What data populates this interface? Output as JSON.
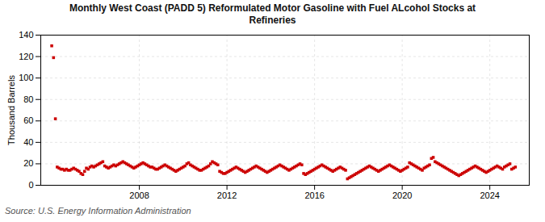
{
  "chart_data": {
    "type": "scatter",
    "title": "Monthly West Coast (PADD 5) Reformulated Motor Gasoline with Fuel ALcohol Stocks at\nRefineries",
    "ylabel": "Thousand Barrels",
    "source": "Source: U.S. Energy Information Administration",
    "color": "#cc0000",
    "marker": "square",
    "grid": true,
    "xlim": [
      2003.5,
      2025.8
    ],
    "xticks": [
      2008,
      2012,
      2016,
      2020,
      2024
    ],
    "ylim": [
      0,
      140
    ],
    "yticks": [
      0,
      20,
      40,
      60,
      80,
      100,
      120,
      140
    ],
    "x": [
      2004.0,
      2004.083,
      2004.167,
      2004.25,
      2004.333,
      2004.417,
      2004.5,
      2004.583,
      2004.667,
      2004.75,
      2004.833,
      2004.917,
      2005.0,
      2005.083,
      2005.167,
      2005.25,
      2005.333,
      2005.417,
      2005.5,
      2005.583,
      2005.667,
      2005.75,
      2005.833,
      2005.917,
      2006.0,
      2006.083,
      2006.167,
      2006.25,
      2006.333,
      2006.417,
      2006.5,
      2006.583,
      2006.667,
      2006.75,
      2006.833,
      2006.917,
      2007.0,
      2007.083,
      2007.167,
      2007.25,
      2007.333,
      2007.417,
      2007.5,
      2007.583,
      2007.667,
      2007.75,
      2007.833,
      2007.917,
      2008.0,
      2008.083,
      2008.167,
      2008.25,
      2008.333,
      2008.417,
      2008.5,
      2008.583,
      2008.667,
      2008.75,
      2008.833,
      2008.917,
      2009.0,
      2009.083,
      2009.167,
      2009.25,
      2009.333,
      2009.417,
      2009.5,
      2009.583,
      2009.667,
      2009.75,
      2009.833,
      2009.917,
      2010.0,
      2010.083,
      2010.167,
      2010.25,
      2010.333,
      2010.417,
      2010.5,
      2010.583,
      2010.667,
      2010.75,
      2010.833,
      2010.917,
      2011.0,
      2011.083,
      2011.167,
      2011.25,
      2011.333,
      2011.417,
      2011.5,
      2011.583,
      2011.667,
      2011.75,
      2011.833,
      2011.917,
      2012.0,
      2012.083,
      2012.167,
      2012.25,
      2012.333,
      2012.417,
      2012.5,
      2012.583,
      2012.667,
      2012.75,
      2012.833,
      2012.917,
      2013.0,
      2013.083,
      2013.167,
      2013.25,
      2013.333,
      2013.417,
      2013.5,
      2013.583,
      2013.667,
      2013.75,
      2013.833,
      2013.917,
      2014.0,
      2014.083,
      2014.167,
      2014.25,
      2014.333,
      2014.417,
      2014.5,
      2014.583,
      2014.667,
      2014.75,
      2014.833,
      2014.917,
      2015.0,
      2015.083,
      2015.167,
      2015.25,
      2015.333,
      2015.417,
      2015.5,
      2015.583,
      2015.667,
      2015.75,
      2015.833,
      2015.917,
      2016.0,
      2016.083,
      2016.167,
      2016.25,
      2016.333,
      2016.417,
      2016.5,
      2016.583,
      2016.667,
      2016.75,
      2016.833,
      2016.917,
      2017.0,
      2017.083,
      2017.167,
      2017.25,
      2017.333,
      2017.417,
      2017.5,
      2017.583,
      2017.667,
      2017.75,
      2017.833,
      2017.917,
      2018.0,
      2018.083,
      2018.167,
      2018.25,
      2018.333,
      2018.417,
      2018.5,
      2018.583,
      2018.667,
      2018.75,
      2018.833,
      2018.917,
      2019.0,
      2019.083,
      2019.167,
      2019.25,
      2019.333,
      2019.417,
      2019.5,
      2019.583,
      2019.667,
      2019.75,
      2019.833,
      2019.917,
      2020.0,
      2020.083,
      2020.167,
      2020.25,
      2020.333,
      2020.417,
      2020.5,
      2020.583,
      2020.667,
      2020.75,
      2020.833,
      2020.917,
      2021.0,
      2021.083,
      2021.167,
      2021.25,
      2021.333,
      2021.417,
      2021.5,
      2021.583,
      2021.667,
      2021.75,
      2021.833,
      2021.917,
      2022.0,
      2022.083,
      2022.167,
      2022.25,
      2022.333,
      2022.417,
      2022.5,
      2022.583,
      2022.667,
      2022.75,
      2022.833,
      2022.917,
      2023.0,
      2023.083,
      2023.167,
      2023.25,
      2023.333,
      2023.417,
      2023.5,
      2023.583,
      2023.667,
      2023.75,
      2023.833,
      2023.917,
      2024.0,
      2024.083,
      2024.167,
      2024.25,
      2024.333,
      2024.417,
      2024.5,
      2024.583,
      2024.667,
      2024.75,
      2024.833,
      2024.917,
      2025.0,
      2025.083,
      2025.167
    ],
    "values": [
      130,
      119,
      62,
      17,
      16,
      15,
      15,
      14,
      15,
      14,
      14,
      15,
      16,
      15,
      14,
      13,
      11,
      10,
      13,
      16,
      15,
      17,
      18,
      17,
      18,
      19,
      20,
      21,
      22,
      18,
      17,
      16,
      17,
      18,
      19,
      18,
      19,
      20,
      21,
      22,
      21,
      20,
      19,
      18,
      17,
      16,
      17,
      18,
      19,
      20,
      21,
      20,
      19,
      18,
      17,
      17,
      16,
      15,
      15,
      16,
      17,
      18,
      19,
      18,
      17,
      16,
      15,
      14,
      13,
      14,
      15,
      16,
      17,
      18,
      20,
      21,
      19,
      18,
      17,
      16,
      15,
      14,
      14,
      15,
      16,
      17,
      18,
      20,
      22,
      21,
      20,
      19,
      13,
      12,
      11,
      11,
      12,
      13,
      14,
      15,
      16,
      17,
      16,
      15,
      14,
      13,
      12,
      13,
      14,
      15,
      16,
      17,
      18,
      17,
      16,
      15,
      14,
      13,
      12,
      13,
      14,
      15,
      16,
      17,
      18,
      19,
      18,
      17,
      16,
      15,
      14,
      15,
      16,
      17,
      18,
      19,
      20,
      19,
      11,
      10,
      11,
      12,
      13,
      14,
      15,
      16,
      17,
      18,
      19,
      18,
      17,
      16,
      15,
      14,
      13,
      14,
      15,
      16,
      17,
      16,
      15,
      14,
      6,
      7,
      8,
      9,
      10,
      11,
      12,
      13,
      14,
      15,
      16,
      17,
      18,
      17,
      16,
      15,
      14,
      13,
      14,
      15,
      16,
      17,
      18,
      19,
      18,
      17,
      16,
      15,
      14,
      13,
      14,
      15,
      16,
      17,
      21,
      20,
      19,
      18,
      17,
      16,
      15,
      14,
      16,
      17,
      18,
      19,
      25,
      26,
      22,
      21,
      20,
      19,
      18,
      17,
      16,
      15,
      14,
      13,
      12,
      11,
      10,
      9,
      10,
      11,
      12,
      13,
      14,
      15,
      16,
      17,
      18,
      17,
      16,
      15,
      14,
      13,
      12,
      13,
      14,
      15,
      16,
      17,
      18,
      17,
      16,
      15,
      17,
      18,
      19,
      20,
      15,
      16,
      17
    ]
  }
}
